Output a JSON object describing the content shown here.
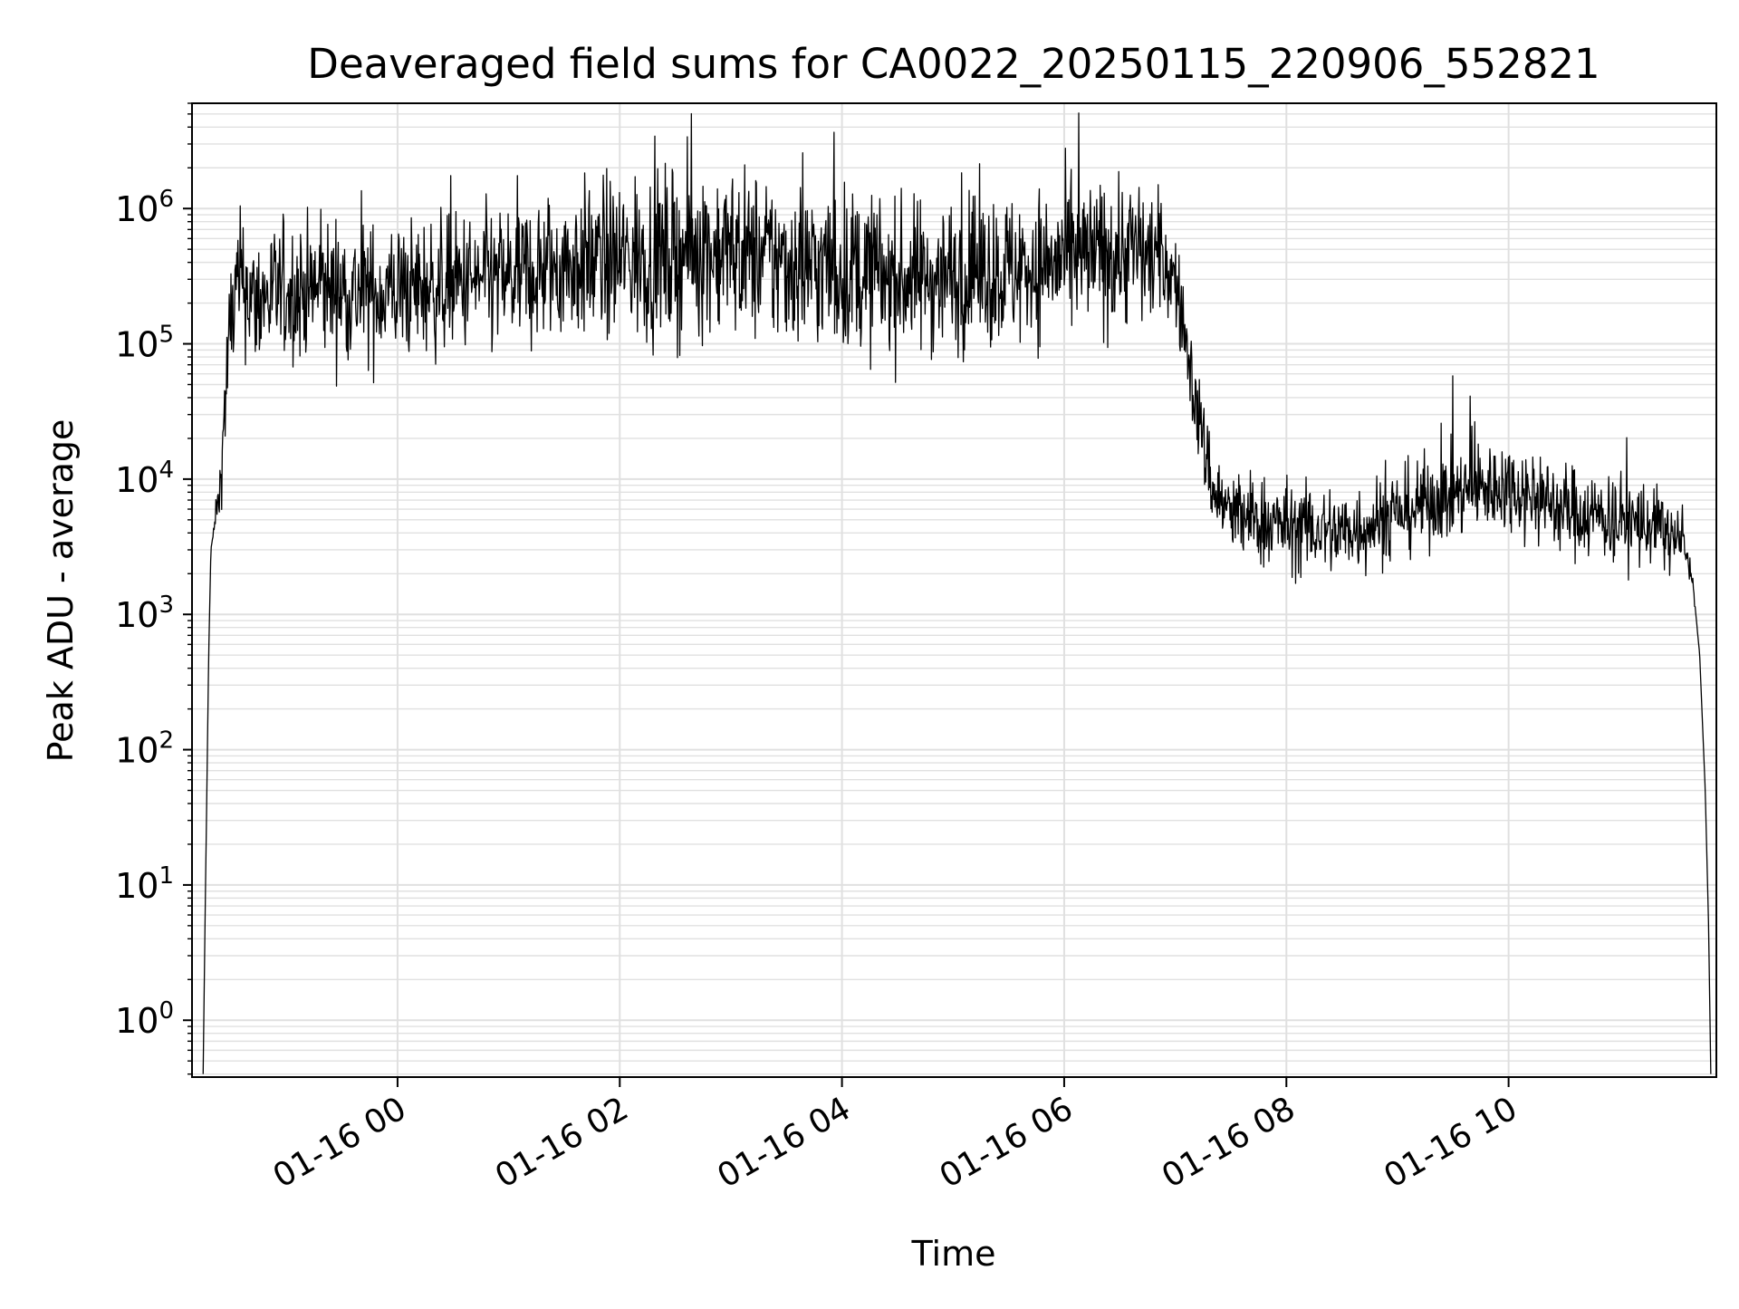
{
  "chart_data": {
    "type": "line",
    "title": "Deaveraged field sums for CA0022_20250115_220906_552821",
    "xlabel": "Time",
    "ylabel": "Peak ADU - average",
    "x_unit": "hours",
    "xlim": [
      -1.85,
      11.87
    ],
    "x_ticks": [
      {
        "x": 0,
        "label": "01-16 00"
      },
      {
        "x": 2,
        "label": "01-16 02"
      },
      {
        "x": 4,
        "label": "01-16 04"
      },
      {
        "x": 6,
        "label": "01-16 06"
      },
      {
        "x": 8,
        "label": "01-16 08"
      },
      {
        "x": 10,
        "label": "01-16 10"
      }
    ],
    "y_scale": "log",
    "ylim": [
      0.38,
      6000000
    ],
    "y_ticks": [
      {
        "value": 1,
        "base": "10",
        "exp": "0"
      },
      {
        "value": 10,
        "base": "10",
        "exp": "1"
      },
      {
        "value": 100,
        "base": "10",
        "exp": "2"
      },
      {
        "value": 1000,
        "base": "10",
        "exp": "3"
      },
      {
        "value": 10000,
        "base": "10",
        "exp": "4"
      },
      {
        "value": 100000,
        "base": "10",
        "exp": "5"
      },
      {
        "value": 1000000,
        "base": "10",
        "exp": "6"
      }
    ],
    "grid": true,
    "line_color": "#000000",
    "grid_color": "#e0e0e0",
    "series": [
      {
        "x": [
          -1.75,
          -1.73,
          -1.72,
          -1.7,
          -1.68,
          -1.6,
          -1.55,
          -1.5,
          -1.45,
          -1.4,
          -1.35,
          -1.3,
          -1.2,
          -1.1,
          -1.0,
          -0.8,
          -0.6,
          -0.4,
          -0.2,
          0.0,
          0.3,
          0.6,
          1.0,
          1.3,
          1.6,
          2.0,
          2.5,
          2.7,
          3.0,
          3.5,
          4.0,
          4.5,
          5.0,
          5.5,
          6.0,
          6.3,
          6.6,
          6.8,
          6.9,
          7.0,
          7.1,
          7.2,
          7.35,
          7.5,
          8.0,
          8.5,
          9.0,
          9.5,
          10.0,
          10.5,
          11.0,
          11.3,
          11.55,
          11.65,
          11.72,
          11.77,
          11.8,
          11.82
        ],
        "y": [
          0.4,
          8,
          30,
          500,
          3000,
          8000,
          40000,
          150000,
          250000,
          300000,
          250000,
          200000,
          220000,
          230000,
          240000,
          250000,
          260000,
          240000,
          230000,
          250000,
          260000,
          280000,
          300000,
          350000,
          400000,
          420000,
          450000,
          500000,
          480000,
          400000,
          350000,
          300000,
          320000,
          350000,
          400000,
          450000,
          500000,
          450000,
          400000,
          300000,
          100000,
          30000,
          8000,
          5500,
          4500,
          4000,
          5500,
          8000,
          9000,
          6000,
          5000,
          4500,
          3500,
          2000,
          500,
          50,
          5,
          0.4
        ],
        "noise_log10_amplitude": [
          0,
          0,
          0,
          0,
          0,
          0.2,
          0.35,
          0.45,
          0.45,
          0.45,
          0.45,
          0.45,
          0.45,
          0.45,
          0.45,
          0.45,
          0.45,
          0.45,
          0.45,
          0.45,
          0.45,
          0.45,
          0.5,
          0.5,
          0.5,
          0.55,
          0.55,
          0.55,
          0.55,
          0.55,
          0.55,
          0.5,
          0.5,
          0.5,
          0.5,
          0.5,
          0.5,
          0.45,
          0.4,
          0.3,
          0.3,
          0.3,
          0.3,
          0.3,
          0.3,
          0.3,
          0.3,
          0.3,
          0.3,
          0.3,
          0.3,
          0.3,
          0.2,
          0.05,
          0,
          0,
          0,
          0
        ]
      }
    ]
  }
}
